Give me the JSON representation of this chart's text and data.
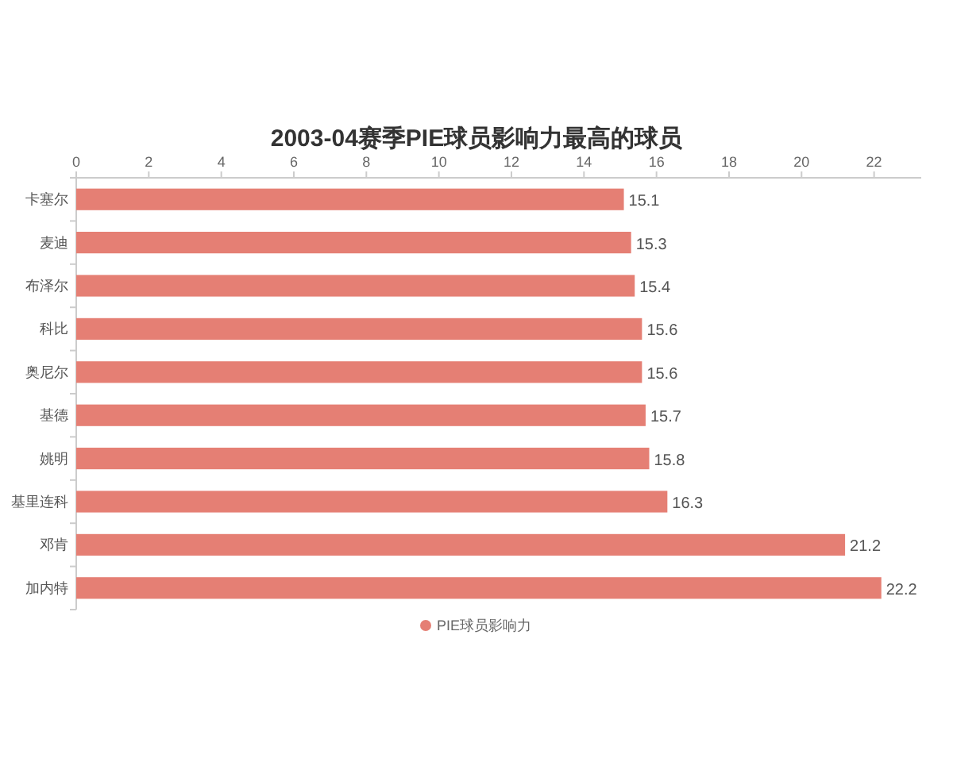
{
  "chart_data": {
    "type": "bar",
    "orientation": "horizontal",
    "title": "2003-04赛季PIE球员影响力最高的球员",
    "categories": [
      "卡塞尔",
      "麦迪",
      "布泽尔",
      "科比",
      "奥尼尔",
      "基德",
      "姚明",
      "基里连科",
      "邓肯",
      "加内特"
    ],
    "series": [
      {
        "name": "PIE球员影响力",
        "color": "#e57f74",
        "values": [
          15.1,
          15.3,
          15.4,
          15.6,
          15.6,
          15.7,
          15.8,
          16.3,
          21.2,
          22.2
        ]
      }
    ],
    "xlim": [
      0,
      23.3
    ],
    "xticks": [
      0,
      2,
      4,
      6,
      8,
      10,
      12,
      14,
      16,
      18,
      20,
      22
    ],
    "data_labels": true,
    "grid": false,
    "legend": "bottom"
  }
}
